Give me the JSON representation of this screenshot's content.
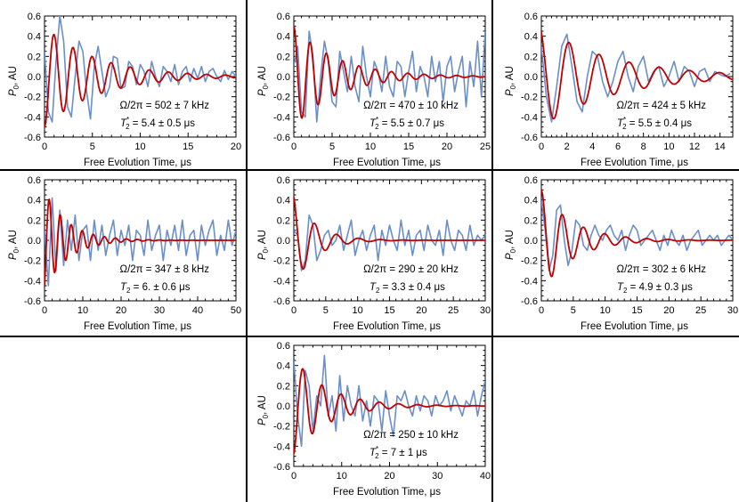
{
  "chart_data": [
    {
      "type": "line",
      "panel": "1",
      "xlabel": "Free Evolution Time, μs",
      "ylabel": "P_0, AU",
      "xlim": [
        0,
        20
      ],
      "ylim": [
        -0.6,
        0.6
      ],
      "xticks": [
        0,
        5,
        10,
        15,
        20
      ],
      "yticks": [
        -0.6,
        -0.4,
        -0.2,
        0.0,
        0.2,
        0.4,
        0.6
      ],
      "annotation_omega": "Ω/2π = 502 ± 7 kHz",
      "annotation_t2": "T*2 = 5.4 ± 0.5 μs",
      "fit": {
        "omega_khz": 502,
        "t2_us": 5.4,
        "amplitude": 0.5,
        "phase": 3.14159
      },
      "series": [
        {
          "values_x": [
            0,
            0.4,
            0.8,
            1.2,
            1.6,
            2.0,
            2.4,
            2.8,
            3.2,
            3.6,
            4.0,
            4.4,
            4.8,
            5.2,
            5.6,
            6.0,
            6.4,
            6.8,
            7.2,
            7.6,
            8.0,
            8.4,
            8.8,
            9.2,
            9.6,
            10,
            10.4,
            10.8,
            11.2,
            11.6,
            12,
            12.4,
            12.8,
            13.2,
            13.6,
            14,
            14.4,
            14.8,
            15.2,
            15.6,
            16,
            16.4,
            16.8,
            17.2,
            17.6,
            18,
            18.4,
            18.8,
            19.2,
            19.6,
            20
          ],
          "values_y": [
            0.25,
            -0.35,
            -0.45,
            0.15,
            0.6,
            0.35,
            -0.3,
            -0.4,
            0.0,
            0.35,
            0.25,
            -0.15,
            -0.42,
            0.1,
            0.3,
            0.05,
            -0.2,
            -0.1,
            0.2,
            0.18,
            -0.12,
            -0.1,
            0.15,
            0.1,
            -0.08,
            0.12,
            0.05,
            -0.1,
            0.15,
            0.0,
            -0.1,
            0.1,
            0.05,
            -0.05,
            0.12,
            -0.08,
            0.05,
            0.1,
            -0.05,
            0.08,
            -0.02,
            0.1,
            -0.05,
            0.05,
            0.08,
            0.0,
            -0.05,
            0.06,
            -0.03,
            0.05,
            0.0
          ]
        }
      ]
    },
    {
      "type": "line",
      "panel": "2",
      "xlabel": "Free Evolution Time, μs",
      "ylabel": "P_0, AU",
      "xlim": [
        0,
        25
      ],
      "ylim": [
        -0.6,
        0.6
      ],
      "xticks": [
        0,
        5,
        10,
        15,
        20,
        25
      ],
      "yticks": [
        -0.6,
        -0.4,
        -0.2,
        0.0,
        0.2,
        0.4,
        0.6
      ],
      "annotation_omega": "Ω/2π = 470 ± 10 kHz",
      "annotation_t2": "T*2 = 5.5 ± 0.7 μs",
      "fit": {
        "omega_khz": 470,
        "t2_us": 5.5,
        "amplitude": 0.5,
        "phase": 0.0
      },
      "series": [
        {
          "values_x": [
            0,
            0.5,
            1,
            1.5,
            2,
            2.5,
            3,
            3.5,
            4,
            4.5,
            5,
            5.5,
            6,
            6.5,
            7,
            7.5,
            8,
            8.5,
            9,
            9.5,
            10,
            10.5,
            11,
            11.5,
            12,
            12.5,
            13,
            13.5,
            14,
            14.5,
            15,
            15.5,
            16,
            16.5,
            17,
            17.5,
            18,
            18.5,
            19,
            19.5,
            20,
            20.5,
            21,
            21.5,
            22,
            22.5,
            23,
            23.5,
            24,
            24.5,
            25
          ],
          "values_y": [
            0.1,
            0.3,
            -0.35,
            -0.4,
            0.45,
            0.2,
            -0.45,
            0.0,
            0.35,
            0.15,
            -0.25,
            -0.3,
            0.25,
            0.05,
            -0.15,
            0.2,
            -0.1,
            -0.25,
            0.3,
            0.0,
            -0.2,
            0.15,
            0.05,
            -0.15,
            0.2,
            -0.1,
            -0.2,
            0.15,
            0.1,
            -0.2,
            0.05,
            0.25,
            -0.15,
            0.1,
            0.0,
            -0.2,
            0.2,
            -0.05,
            0.15,
            -0.25,
            0.1,
            0.2,
            -0.15,
            0.05,
            0.2,
            -0.3,
            0.15,
            -0.1,
            0.35,
            -0.2,
            0.45
          ]
        }
      ]
    },
    {
      "type": "line",
      "panel": "3",
      "xlabel": "Free Evolution Time, μs",
      "ylabel": "P_0, AU",
      "xlim": [
        0,
        15
      ],
      "ylim": [
        -0.6,
        0.6
      ],
      "xticks": [
        0,
        2,
        4,
        6,
        8,
        10,
        12,
        14
      ],
      "yticks": [
        -0.6,
        -0.4,
        -0.2,
        0.0,
        0.2,
        0.4,
        0.6
      ],
      "annotation_omega": "Ω/2π = 424 ± 5 kHz",
      "annotation_t2": "T*2 = 5.5 ± 0.4 μs",
      "fit": {
        "omega_khz": 424,
        "t2_us": 5.5,
        "amplitude": 0.5,
        "phase": 0.5
      },
      "series": [
        {
          "values_x": [
            0,
            0.4,
            0.8,
            1.2,
            1.6,
            2.0,
            2.4,
            2.8,
            3.2,
            3.6,
            4.0,
            4.4,
            4.8,
            5.2,
            5.6,
            6.0,
            6.4,
            6.8,
            7.2,
            7.6,
            8.0,
            8.4,
            8.8,
            9.2,
            9.6,
            10,
            10.4,
            10.8,
            11.2,
            11.6,
            12,
            12.4,
            12.8,
            13.2,
            13.6,
            14,
            14.4,
            14.8
          ],
          "values_y": [
            0.3,
            -0.2,
            -0.45,
            -0.1,
            0.3,
            0.42,
            0.1,
            -0.25,
            -0.35,
            0.0,
            0.25,
            0.2,
            -0.05,
            -0.2,
            -0.05,
            0.15,
            0.25,
            0.0,
            -0.15,
            0.1,
            0.2,
            -0.05,
            0.05,
            0.1,
            -0.1,
            0.0,
            0.15,
            -0.05,
            0.1,
            0.05,
            -0.1,
            0.05,
            0.08,
            -0.05,
            0.05,
            0.02,
            0.0,
            0.03
          ]
        }
      ]
    },
    {
      "type": "line",
      "panel": "4",
      "xlabel": "Free Evolution Time, μs",
      "ylabel": "P_0, AU",
      "xlim": [
        0,
        50
      ],
      "ylim": [
        -0.6,
        0.6
      ],
      "xticks": [
        0,
        10,
        20,
        30,
        40,
        50
      ],
      "yticks": [
        -0.6,
        -0.4,
        -0.2,
        0.0,
        0.2,
        0.4,
        0.6
      ],
      "annotation_omega": "Ω/2π = 347 ± 8 kHz",
      "annotation_t2": "T2 = 6. ± 0.6 μs",
      "fit": {
        "omega_khz": 347,
        "t2_us": 6.0,
        "amplitude": 0.5,
        "phase": 3.6
      },
      "series": [
        {
          "values_x": [
            0,
            1,
            2,
            3,
            4,
            5,
            6,
            7,
            8,
            9,
            10,
            11,
            12,
            13,
            14,
            15,
            16,
            17,
            18,
            19,
            20,
            21,
            22,
            23,
            24,
            25,
            26,
            27,
            28,
            29,
            30,
            31,
            32,
            33,
            34,
            35,
            36,
            37,
            38,
            39,
            40,
            41,
            42,
            43,
            44,
            45,
            46,
            47,
            48,
            49,
            50
          ],
          "values_y": [
            0.1,
            -0.45,
            0.42,
            -0.3,
            0.3,
            -0.25,
            0.2,
            -0.1,
            0.25,
            -0.2,
            0.1,
            0.15,
            -0.2,
            0.2,
            -0.1,
            0.15,
            -0.15,
            0.05,
            0.2,
            -0.15,
            0.1,
            -0.05,
            0.15,
            -0.2,
            0.1,
            0.05,
            -0.15,
            0.2,
            -0.1,
            0.05,
            0.15,
            -0.2,
            0.1,
            -0.05,
            0.15,
            -0.1,
            0.2,
            -0.15,
            0.05,
            0.1,
            -0.2,
            0.15,
            -0.05,
            0.1,
            0.2,
            -0.15,
            0.05,
            -0.1,
            0.2,
            -0.05,
            0.1
          ]
        }
      ]
    },
    {
      "type": "line",
      "panel": "5",
      "xlabel": "Free Evolution Time, μs",
      "ylabel": "P_0, AU",
      "xlim": [
        0,
        30
      ],
      "ylim": [
        -0.6,
        0.6
      ],
      "xticks": [
        0,
        5,
        10,
        15,
        20,
        25,
        30
      ],
      "yticks": [
        -0.6,
        -0.4,
        -0.2,
        0.0,
        0.2,
        0.4,
        0.6
      ],
      "annotation_omega": "Ω/2π = 290 ± 20 kHz",
      "annotation_t2": "T2 = 3.3 ± 0.4 μs",
      "fit": {
        "omega_khz": 290,
        "t2_us": 3.3,
        "amplitude": 0.45,
        "phase": 0.3
      },
      "series": [
        {
          "values_x": [
            0,
            0.6,
            1.2,
            1.8,
            2.4,
            3.0,
            3.6,
            4.2,
            4.8,
            5.4,
            6.0,
            6.6,
            7.2,
            7.8,
            8.4,
            9.0,
            9.6,
            10.2,
            10.8,
            11.4,
            12,
            12.6,
            13.2,
            13.8,
            14.4,
            15,
            15.6,
            16.2,
            16.8,
            17.4,
            18,
            18.6,
            19.2,
            19.8,
            20.4,
            21,
            21.6,
            22.2,
            22.8,
            23.4,
            24,
            24.6,
            25.2,
            25.8,
            26.4,
            27,
            27.6,
            28.2,
            28.8,
            29.4,
            30
          ],
          "values_y": [
            0.1,
            0.05,
            -0.3,
            -0.2,
            0.25,
            0.15,
            -0.2,
            -0.1,
            0.05,
            0.1,
            -0.05,
            0.0,
            0.15,
            -0.1,
            0.05,
            0.2,
            -0.15,
            0.0,
            0.1,
            -0.1,
            0.05,
            0.15,
            -0.2,
            0.1,
            -0.05,
            0.15,
            0.0,
            -0.1,
            0.2,
            -0.05,
            0.1,
            -0.15,
            0.05,
            0.1,
            -0.1,
            0.15,
            0.0,
            -0.05,
            0.1,
            -0.15,
            0.2,
            0.0,
            -0.1,
            0.1,
            0.05,
            -0.1,
            0.15,
            -0.05,
            0.05,
            0.0,
            0.05
          ]
        }
      ]
    },
    {
      "type": "line",
      "panel": "6",
      "xlabel": "Free Evolution Time, μs",
      "ylabel": "P_0, AU",
      "xlim": [
        0,
        30
      ],
      "ylim": [
        -0.6,
        0.6
      ],
      "xticks": [
        0,
        5,
        10,
        15,
        20,
        25,
        30
      ],
      "yticks": [
        -0.6,
        -0.4,
        -0.2,
        0.0,
        0.2,
        0.4,
        0.6
      ],
      "annotation_omega": "Ω/2π = 302 ± 6 kHz",
      "annotation_t2": "T2 = 4.9 ± 0.3 μs",
      "fit": {
        "omega_khz": 302,
        "t2_us": 4.9,
        "amplitude": 0.5,
        "phase": 0.0
      },
      "series": [
        {
          "values_x": [
            0,
            0.6,
            1.2,
            1.8,
            2.4,
            3.0,
            3.6,
            4.2,
            4.8,
            5.4,
            6.0,
            6.6,
            7.2,
            7.8,
            8.4,
            9.0,
            9.6,
            10.2,
            10.8,
            11.4,
            12,
            12.6,
            13.2,
            13.8,
            14.4,
            15,
            15.6,
            16.2,
            16.8,
            17.4,
            18,
            18.6,
            19.2,
            19.8,
            20.4,
            21,
            21.6,
            22.2,
            22.8,
            23.4,
            24,
            24.6,
            25.2,
            25.8,
            26.4,
            27,
            27.6,
            28.2,
            28.8,
            29.4,
            30
          ],
          "values_y": [
            0.4,
            0.1,
            -0.3,
            -0.15,
            0.3,
            0.35,
            0.0,
            -0.25,
            -0.1,
            0.2,
            0.15,
            -0.05,
            -0.1,
            0.05,
            0.15,
            0.05,
            0.0,
            0.1,
            0.15,
            0.05,
            0.0,
            0.1,
            -0.1,
            0.05,
            0.15,
            0.1,
            -0.05,
            0.0,
            0.05,
            0.1,
            0.0,
            -0.1,
            0.05,
            -0.05,
            0.1,
            0.0,
            -0.05,
            0.05,
            -0.1,
            0.0,
            0.05,
            0.1,
            -0.05,
            0.0,
            0.05,
            0.0,
            0.05,
            -0.05,
            0.0,
            0.05,
            0.0
          ]
        }
      ]
    },
    {
      "type": "line",
      "panel": "7",
      "xlabel": "Free Evolution Time, μs",
      "ylabel": "P_0, AU",
      "xlim": [
        0,
        40
      ],
      "ylim": [
        -0.6,
        0.6
      ],
      "xticks": [
        0,
        10,
        20,
        30,
        40
      ],
      "yticks": [
        -0.6,
        -0.4,
        -0.2,
        0.0,
        0.2,
        0.4,
        0.6
      ],
      "annotation_omega": "Ω/2π = 250 ± 10 kHz",
      "annotation_t2": "T*2 = 7 ± 1 μs",
      "fit": {
        "omega_khz": 250,
        "t2_us": 7.0,
        "amplitude": 0.48,
        "phase": 3.3
      },
      "series": [
        {
          "values_x": [
            0,
            0.8,
            1.6,
            2.4,
            3.2,
            4.0,
            4.8,
            5.6,
            6.4,
            7.2,
            8.0,
            8.8,
            9.6,
            10.4,
            11.2,
            12,
            12.8,
            13.6,
            14.4,
            15.2,
            16,
            16.8,
            17.6,
            18.4,
            19.2,
            20,
            20.8,
            21.6,
            22.4,
            23.2,
            24,
            24.8,
            25.6,
            26.4,
            27.2,
            28,
            28.8,
            29.6,
            30.4,
            31.2,
            32,
            32.8,
            33.6,
            34.4,
            35.2,
            36,
            36.8,
            37.6,
            38.4,
            39.2,
            40
          ],
          "values_y": [
            0.45,
            -0.1,
            -0.4,
            0.35,
            0.2,
            -0.25,
            0.1,
            0.0,
            0.5,
            -0.1,
            0.1,
            -0.25,
            0.3,
            -0.15,
            0.2,
            0.0,
            -0.1,
            0.2,
            -0.15,
            0.05,
            -0.2,
            0.1,
            0.05,
            -0.25,
            0.15,
            -0.1,
            -0.3,
            0.1,
            0.05,
            0.15,
            0.0,
            -0.1,
            0.1,
            -0.05,
            0.1,
            0.05,
            -0.1,
            0.1,
            0.0,
            0.05,
            0.15,
            -0.05,
            0.1,
            0.0,
            -0.1,
            0.05,
            0.0,
            0.15,
            -0.1,
            0.1,
            0.25
          ]
        }
      ]
    }
  ]
}
